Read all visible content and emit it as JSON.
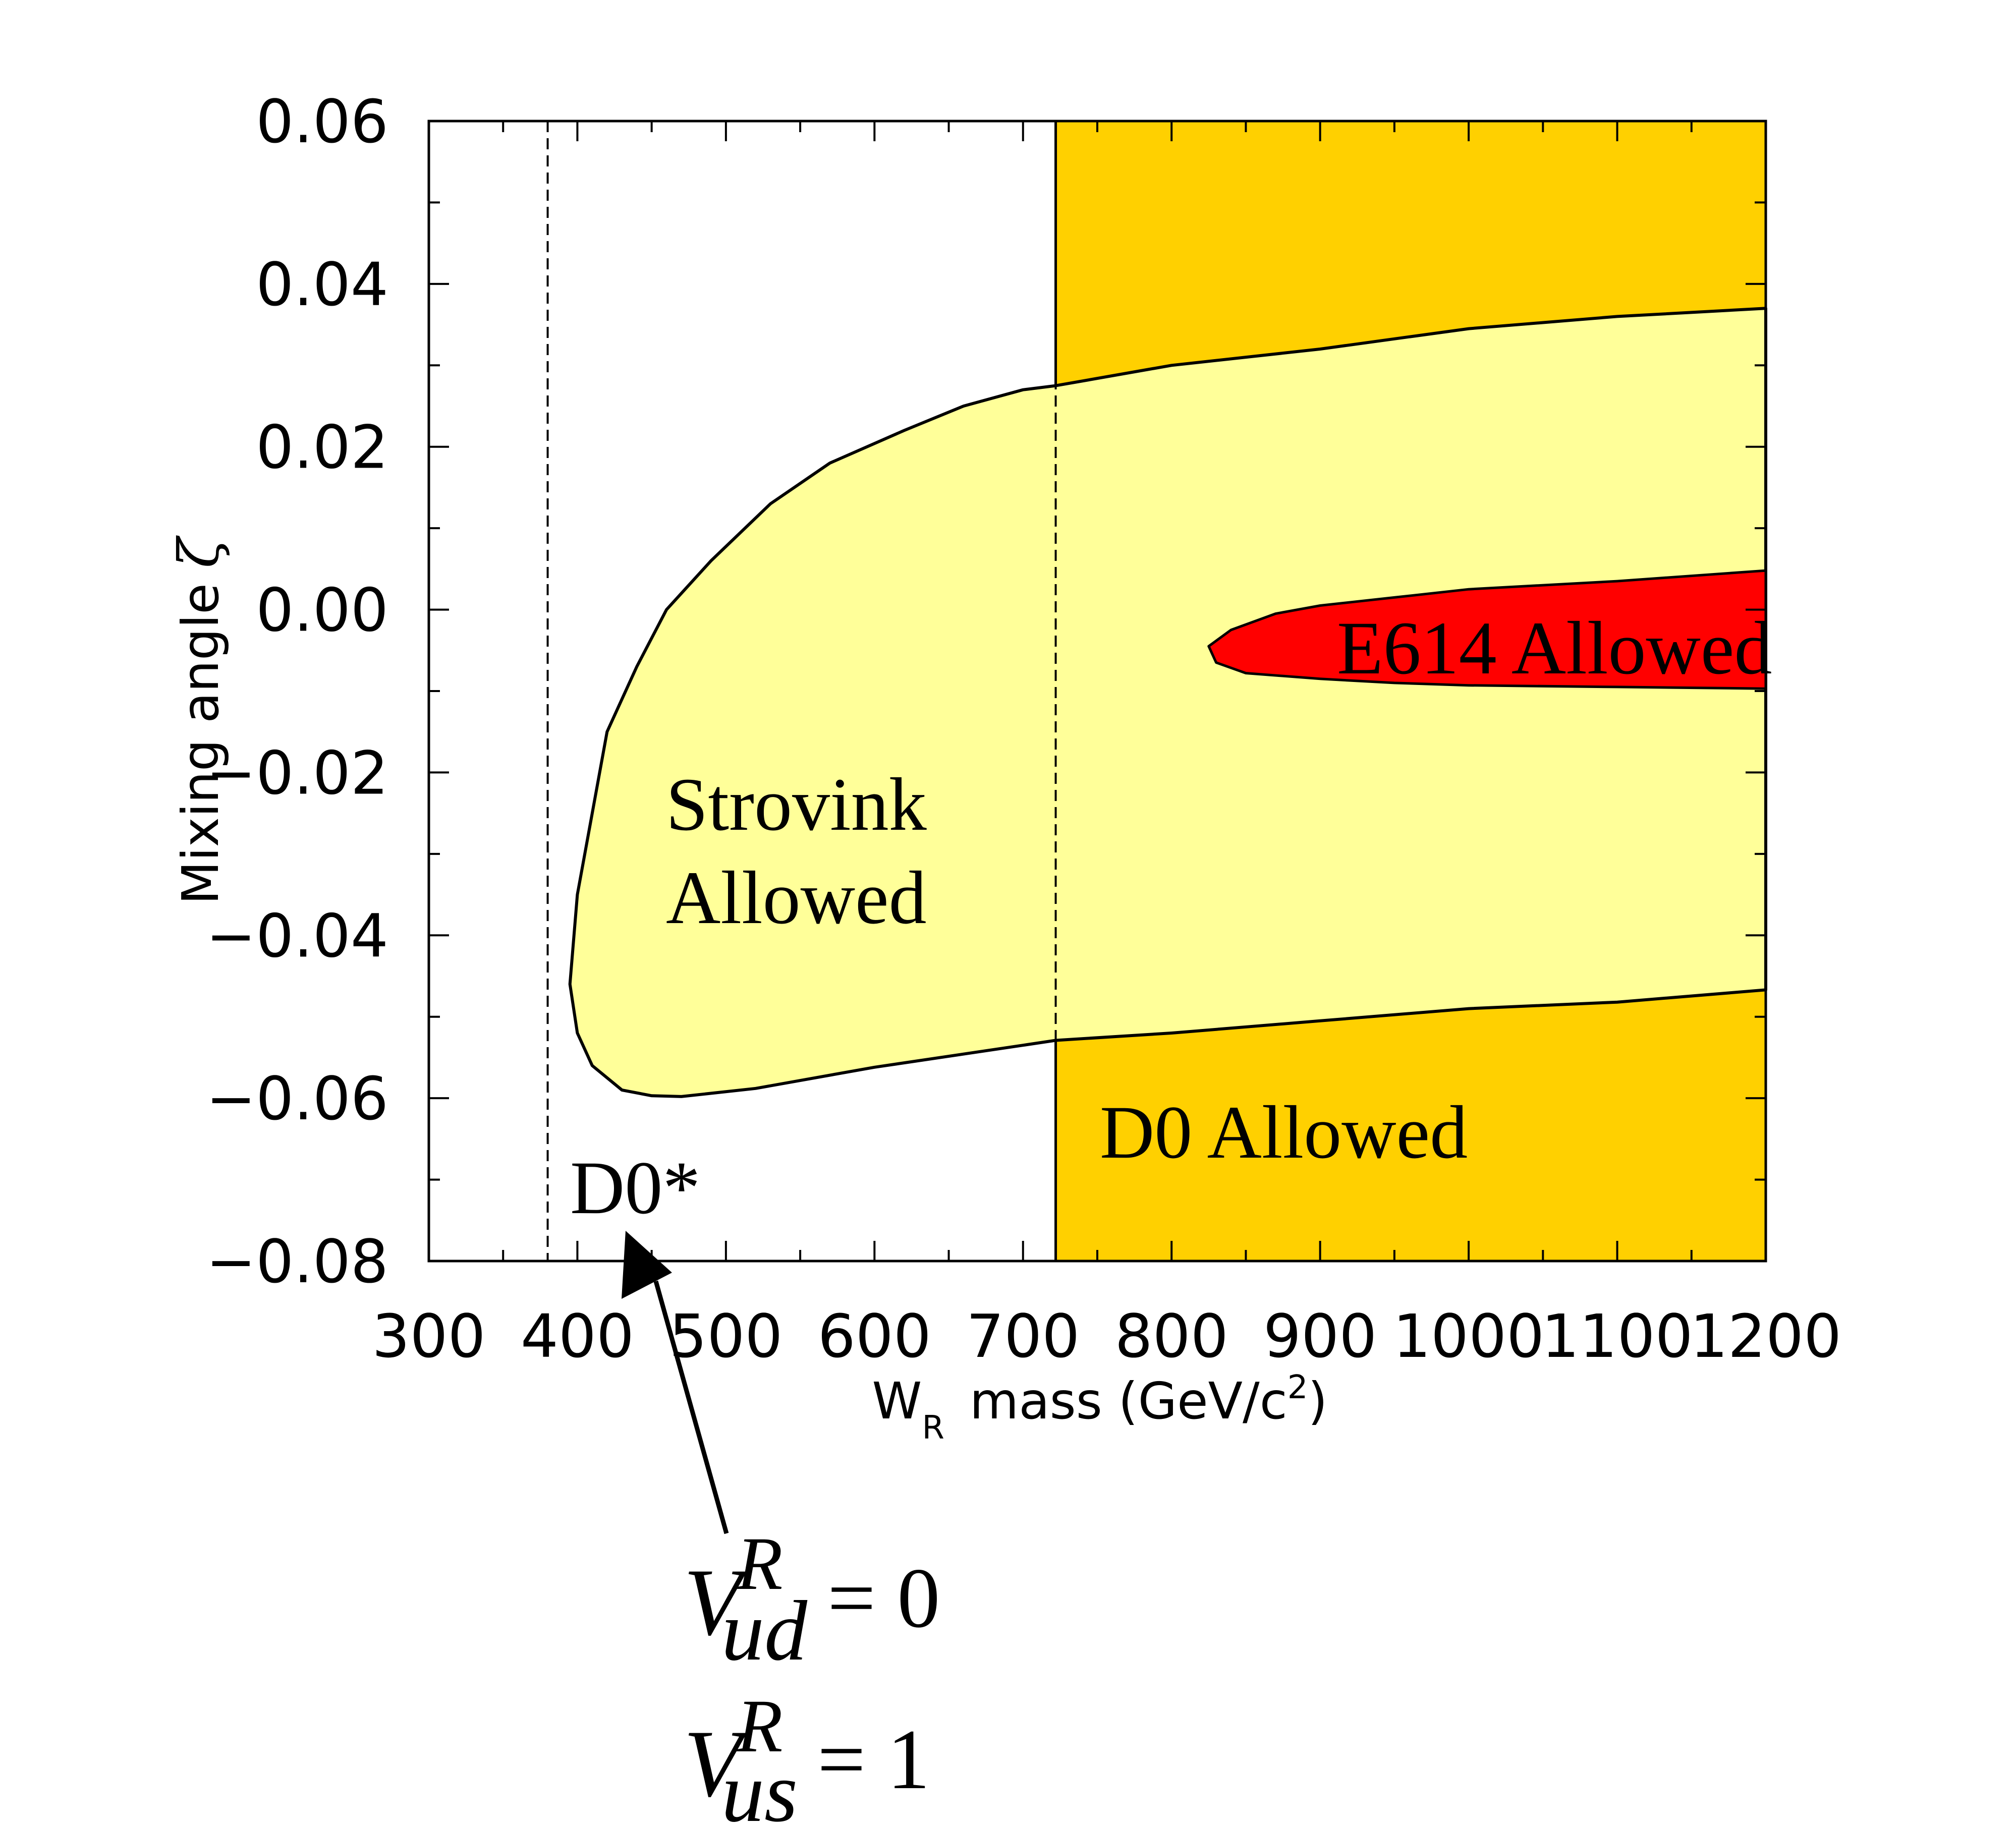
{
  "chart_data": {
    "type": "area",
    "xlabel": "W",
    "xlabel_sub": "R",
    "xlabel_rest": "mass (GeV/c",
    "xlabel_sup": "2",
    "xlabel_end": ")",
    "ylabel": "Mixing angle",
    "ylabel_symbol": "ζ",
    "xlim": [
      300,
      1200
    ],
    "ylim": [
      -0.08,
      0.06
    ],
    "x_ticks": [
      "300",
      "400",
      "500",
      "600",
      "700",
      "800",
      "900",
      "1000",
      "1100",
      "1200"
    ],
    "y_ticks": [
      "0.06",
      "0.04",
      "0.02",
      "0.00",
      "−0.02",
      "−0.04",
      "−0.06",
      "−0.08"
    ],
    "y_tick_values": [
      0.06,
      0.04,
      0.02,
      0.0,
      -0.02,
      -0.04,
      -0.06,
      -0.08
    ],
    "x_tick_values": [
      300,
      400,
      500,
      600,
      700,
      800,
      900,
      1000,
      1100,
      1200
    ],
    "colors": {
      "d0_region": "#FFD000",
      "strovink_region": "#FFFF99",
      "e614_region": "#FF0000"
    },
    "dashed_lines_x": [
      380,
      722
    ],
    "regions": [
      {
        "name": "D0 Allowed",
        "label": "D0 Allowed",
        "x_range": [
          722,
          1200
        ],
        "y_range": [
          -0.08,
          0.06
        ]
      },
      {
        "name": "Strovink Allowed",
        "label_line1": "Strovink",
        "label_line2": "Allowed",
        "upper_boundary": [
          [
            395,
            -0.046
          ],
          [
            400,
            -0.035
          ],
          [
            410,
            -0.025
          ],
          [
            420,
            -0.015
          ],
          [
            440,
            -0.007
          ],
          [
            460,
            0.0
          ],
          [
            490,
            0.006
          ],
          [
            530,
            0.013
          ],
          [
            570,
            0.018
          ],
          [
            620,
            0.022
          ],
          [
            660,
            0.025
          ],
          [
            700,
            0.027
          ],
          [
            722,
            0.0275
          ],
          [
            800,
            0.03
          ],
          [
            900,
            0.032
          ],
          [
            1000,
            0.0345
          ],
          [
            1100,
            0.036
          ],
          [
            1200,
            0.037
          ]
        ],
        "lower_boundary": [
          [
            395,
            -0.046
          ],
          [
            400,
            -0.052
          ],
          [
            410,
            -0.056
          ],
          [
            430,
            -0.059
          ],
          [
            450,
            -0.0597
          ],
          [
            470,
            -0.0598
          ],
          [
            520,
            -0.0588
          ],
          [
            600,
            -0.0562
          ],
          [
            700,
            -0.0535
          ],
          [
            722,
            -0.0529
          ],
          [
            800,
            -0.052
          ],
          [
            900,
            -0.0505
          ],
          [
            1000,
            -0.049
          ],
          [
            1100,
            -0.0482
          ],
          [
            1200,
            -0.0467
          ]
        ]
      },
      {
        "name": "E614 Allowed",
        "label": "E614 Allowed",
        "upper_boundary": [
          [
            825,
            -0.0045
          ],
          [
            840,
            -0.0025
          ],
          [
            870,
            -0.0005
          ],
          [
            900,
            0.0005
          ],
          [
            950,
            0.0015
          ],
          [
            1000,
            0.0025
          ],
          [
            1100,
            0.0035
          ],
          [
            1200,
            0.0048
          ]
        ],
        "lower_boundary": [
          [
            825,
            -0.0045
          ],
          [
            830,
            -0.0065
          ],
          [
            850,
            -0.0078
          ],
          [
            900,
            -0.0085
          ],
          [
            950,
            -0.009
          ],
          [
            1000,
            -0.0093
          ],
          [
            1100,
            -0.0095
          ],
          [
            1200,
            -0.0097
          ]
        ]
      }
    ],
    "annotations": {
      "d0star": "D0*",
      "d0star_x": 460,
      "vud_symbol": "V",
      "vud_sup": "R",
      "vud_sub": "ud",
      "vud_eq": "= 0",
      "vus_symbol": "V",
      "vus_sup": "R",
      "vus_sub": "us",
      "vus_eq": "= 1"
    }
  }
}
